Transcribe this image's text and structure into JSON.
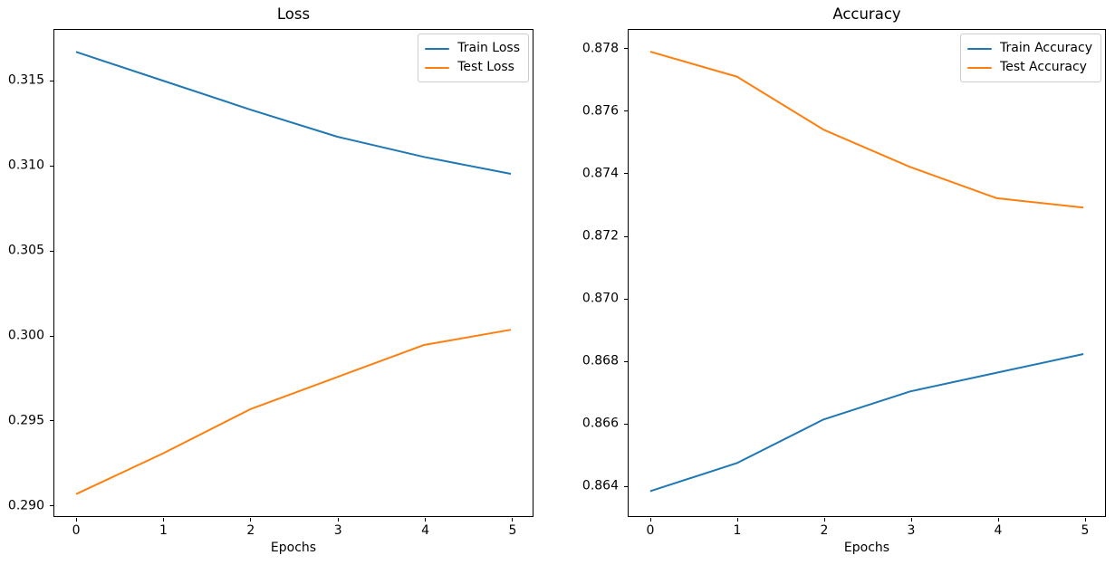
{
  "figure": {
    "background": "#ffffff",
    "text_color": "#000000"
  },
  "chart_data": [
    {
      "type": "line",
      "title": "Loss",
      "xlabel": "Epochs",
      "ylabel": "",
      "x": [
        0,
        1,
        2,
        3,
        4,
        5
      ],
      "xticks": [
        0,
        1,
        2,
        3,
        4,
        5
      ],
      "xtick_labels": [
        "0",
        "1",
        "2",
        "3",
        "4",
        "5"
      ],
      "ytick_values": [
        0.29,
        0.295,
        0.3,
        0.305,
        0.31,
        0.315
      ],
      "ytick_labels": [
        "0.290",
        "0.295",
        "0.300",
        "0.305",
        "0.310",
        "0.315"
      ],
      "xlim": [
        -0.25,
        5.25
      ],
      "ylim": [
        0.2893,
        0.318
      ],
      "grid": false,
      "legend_position": "upper right",
      "series": [
        {
          "name": "Train Loss",
          "color": "#1f77b4",
          "values": [
            0.3167,
            0.315,
            0.3133,
            0.3117,
            0.3105,
            0.3095
          ]
        },
        {
          "name": "Test Loss",
          "color": "#ff7f0e",
          "values": [
            0.2906,
            0.293,
            0.2956,
            0.2975,
            0.2994,
            0.3003
          ]
        }
      ]
    },
    {
      "type": "line",
      "title": "Accuracy",
      "xlabel": "Epochs",
      "ylabel": "",
      "x": [
        0,
        1,
        2,
        3,
        4,
        5
      ],
      "xticks": [
        0,
        1,
        2,
        3,
        4,
        5
      ],
      "xtick_labels": [
        "0",
        "1",
        "2",
        "3",
        "4",
        "5"
      ],
      "ytick_values": [
        0.864,
        0.866,
        0.868,
        0.87,
        0.872,
        0.874,
        0.876,
        0.878
      ],
      "ytick_labels": [
        "0.864",
        "0.866",
        "0.868",
        "0.870",
        "0.872",
        "0.874",
        "0.876",
        "0.878"
      ],
      "xlim": [
        -0.25,
        5.25
      ],
      "ylim": [
        0.863,
        0.8786
      ],
      "grid": false,
      "legend_position": "upper right",
      "series": [
        {
          "name": "Train Accuracy",
          "color": "#1f77b4",
          "values": [
            0.8638,
            0.8647,
            0.8661,
            0.867,
            0.8676,
            0.8682
          ]
        },
        {
          "name": "Test Accuracy",
          "color": "#ff7f0e",
          "values": [
            0.8779,
            0.8771,
            0.8754,
            0.8742,
            0.8732,
            0.8729
          ]
        }
      ]
    }
  ]
}
